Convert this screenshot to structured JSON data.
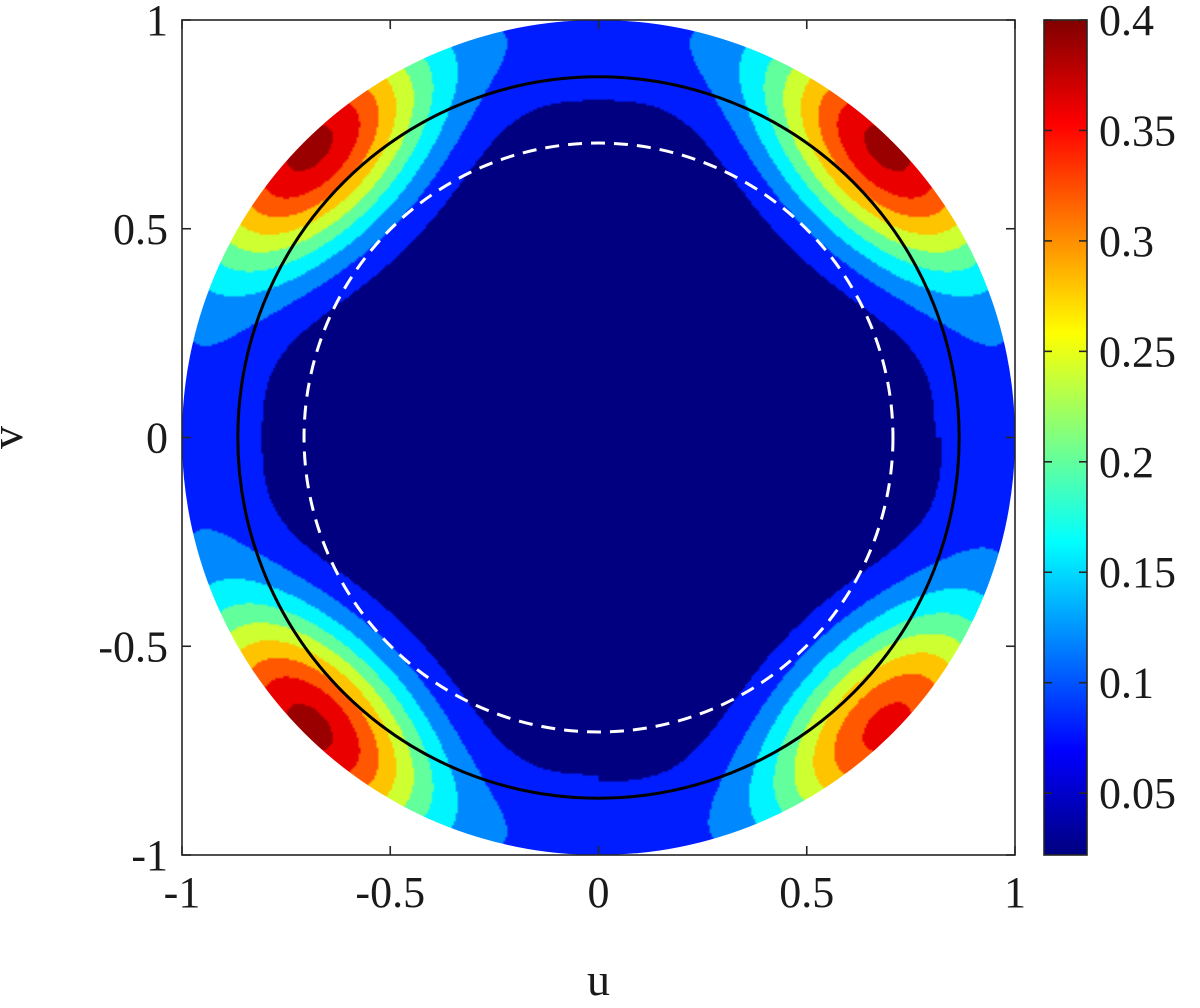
{
  "chart_data": {
    "type": "heatmap",
    "description_kind": "filled contour plot on unit disk",
    "xlabel": "u",
    "ylabel": "v",
    "xlim": [
      -1,
      1
    ],
    "ylim": [
      -1,
      1
    ],
    "x_ticks": [
      -1,
      -0.5,
      0,
      0.5,
      1
    ],
    "x_tick_labels": [
      "-1",
      "-0.5",
      "0",
      "0.5",
      "1"
    ],
    "y_ticks": [
      -1,
      -0.5,
      0,
      0.5,
      1
    ],
    "y_tick_labels": [
      "-1",
      "-0.5",
      "0",
      "0.5",
      "1"
    ],
    "domain": {
      "shape": "disk",
      "radius": 1
    },
    "colormap": "jet",
    "clim": [
      0.022,
      0.4
    ],
    "colorbar": {
      "ticks": [
        0.05,
        0.1,
        0.15,
        0.2,
        0.25,
        0.3,
        0.35,
        0.4
      ],
      "tick_labels": [
        "0.05",
        "0.1",
        "0.15",
        "0.2",
        "0.25",
        "0.3",
        "0.35",
        "0.4"
      ]
    },
    "contour_levels": [
      0.022,
      0.06,
      0.1,
      0.14,
      0.18,
      0.22,
      0.26,
      0.3,
      0.34,
      0.38
    ],
    "peaks": [
      {
        "u": 0.72,
        "v": 0.72,
        "value": 0.37
      },
      {
        "u": -0.72,
        "v": 0.72,
        "value": 0.37
      },
      {
        "u": -0.72,
        "v": -0.72,
        "value": 0.37
      },
      {
        "u": 0.72,
        "v": -0.72,
        "value": 0.33
      }
    ],
    "overlays": [
      {
        "kind": "circle",
        "radius": 0.866,
        "style": "solid",
        "color": "#000000"
      },
      {
        "kind": "circle",
        "radius": 0.707,
        "style": "dashed",
        "color": "#ffffff"
      }
    ],
    "grid": false
  }
}
